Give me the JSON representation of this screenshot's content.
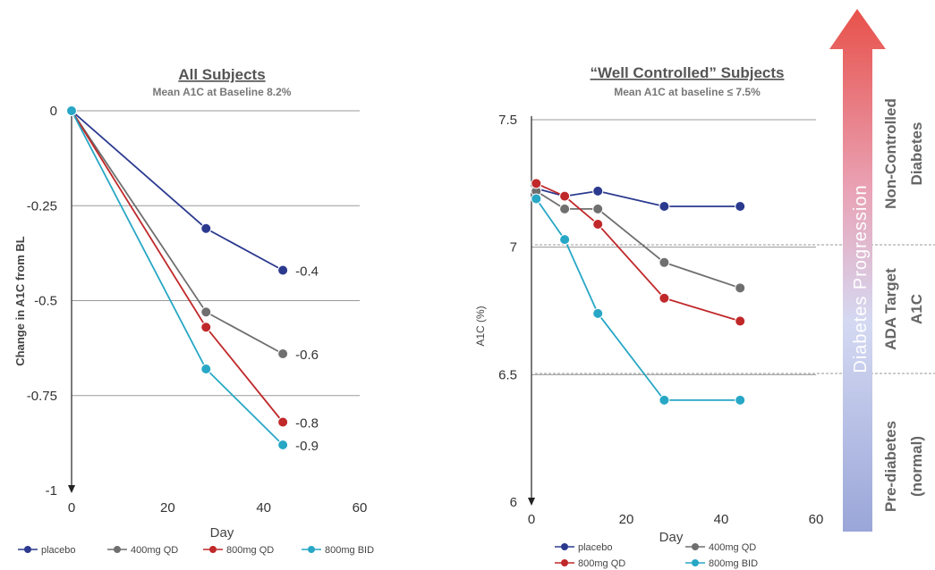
{
  "chart_data": [
    {
      "type": "line",
      "title": "All Subjects",
      "subtitle": "Mean A1C at Baseline 8.2%",
      "xlabel": "Day",
      "ylabel": "Change in A1C from BL",
      "xlim": [
        0,
        60
      ],
      "ylim": [
        -1,
        0
      ],
      "xticks": [
        0,
        20,
        40,
        60
      ],
      "yticks": [
        0,
        -0.25,
        -0.5,
        -0.75,
        -1
      ],
      "ytick_labels": [
        "0",
        "-0.25",
        "-0.5",
        "-0.75",
        "-1"
      ],
      "grid": true,
      "x": [
        0,
        28,
        44
      ],
      "series": [
        {
          "name": "placebo",
          "color": "#2b3a8f",
          "values": [
            0,
            -0.31,
            -0.42
          ],
          "end_label": "-0.4"
        },
        {
          "name": "400mg QD",
          "color": "#6f6f6f",
          "values": [
            0,
            -0.53,
            -0.64
          ],
          "end_label": "-0.6"
        },
        {
          "name": "800mg QD",
          "color": "#c0282a",
          "values": [
            0,
            -0.57,
            -0.82
          ],
          "end_label": "-0.8"
        },
        {
          "name": "800mg BID",
          "color": "#27a7c5",
          "values": [
            0,
            -0.68,
            -0.88
          ],
          "end_label": "-0.9"
        }
      ]
    },
    {
      "type": "line",
      "title": "“Well Controlled” Subjects",
      "subtitle": "Mean A1C at baseline ≤ 7.5%",
      "xlabel": "Day",
      "ylabel": "A1C (%)",
      "xlim": [
        0,
        60
      ],
      "ylim": [
        6,
        7.5
      ],
      "xticks": [
        0,
        20,
        40,
        60
      ],
      "yticks": [
        7.5,
        7,
        6.5,
        6
      ],
      "ytick_labels": [
        "7.5",
        "7",
        "6.5",
        "6"
      ],
      "grid": true,
      "x": [
        1,
        7,
        14,
        28,
        44
      ],
      "series": [
        {
          "name": "placebo",
          "color": "#2b3a8f",
          "values": [
            7.23,
            7.2,
            7.22,
            7.16,
            7.16
          ]
        },
        {
          "name": "400mg QD",
          "color": "#6f6f6f",
          "values": [
            7.22,
            7.15,
            7.15,
            6.94,
            6.84
          ]
        },
        {
          "name": "800mg QD",
          "color": "#c0282a",
          "values": [
            7.25,
            7.2,
            7.09,
            6.8,
            6.71
          ]
        },
        {
          "name": "800mg BID",
          "color": "#27a7c5",
          "values": [
            7.19,
            7.03,
            6.74,
            6.4,
            6.4
          ]
        }
      ]
    }
  ],
  "progression": {
    "arrow_label": "Diabetes Progression",
    "zones": [
      {
        "line1": "Non-Controlled",
        "line2": "Diabetes"
      },
      {
        "line1": "ADA Target",
        "line2": "A1C"
      },
      {
        "line1": "Pre-diabetes",
        "line2": "(normal)"
      }
    ]
  }
}
